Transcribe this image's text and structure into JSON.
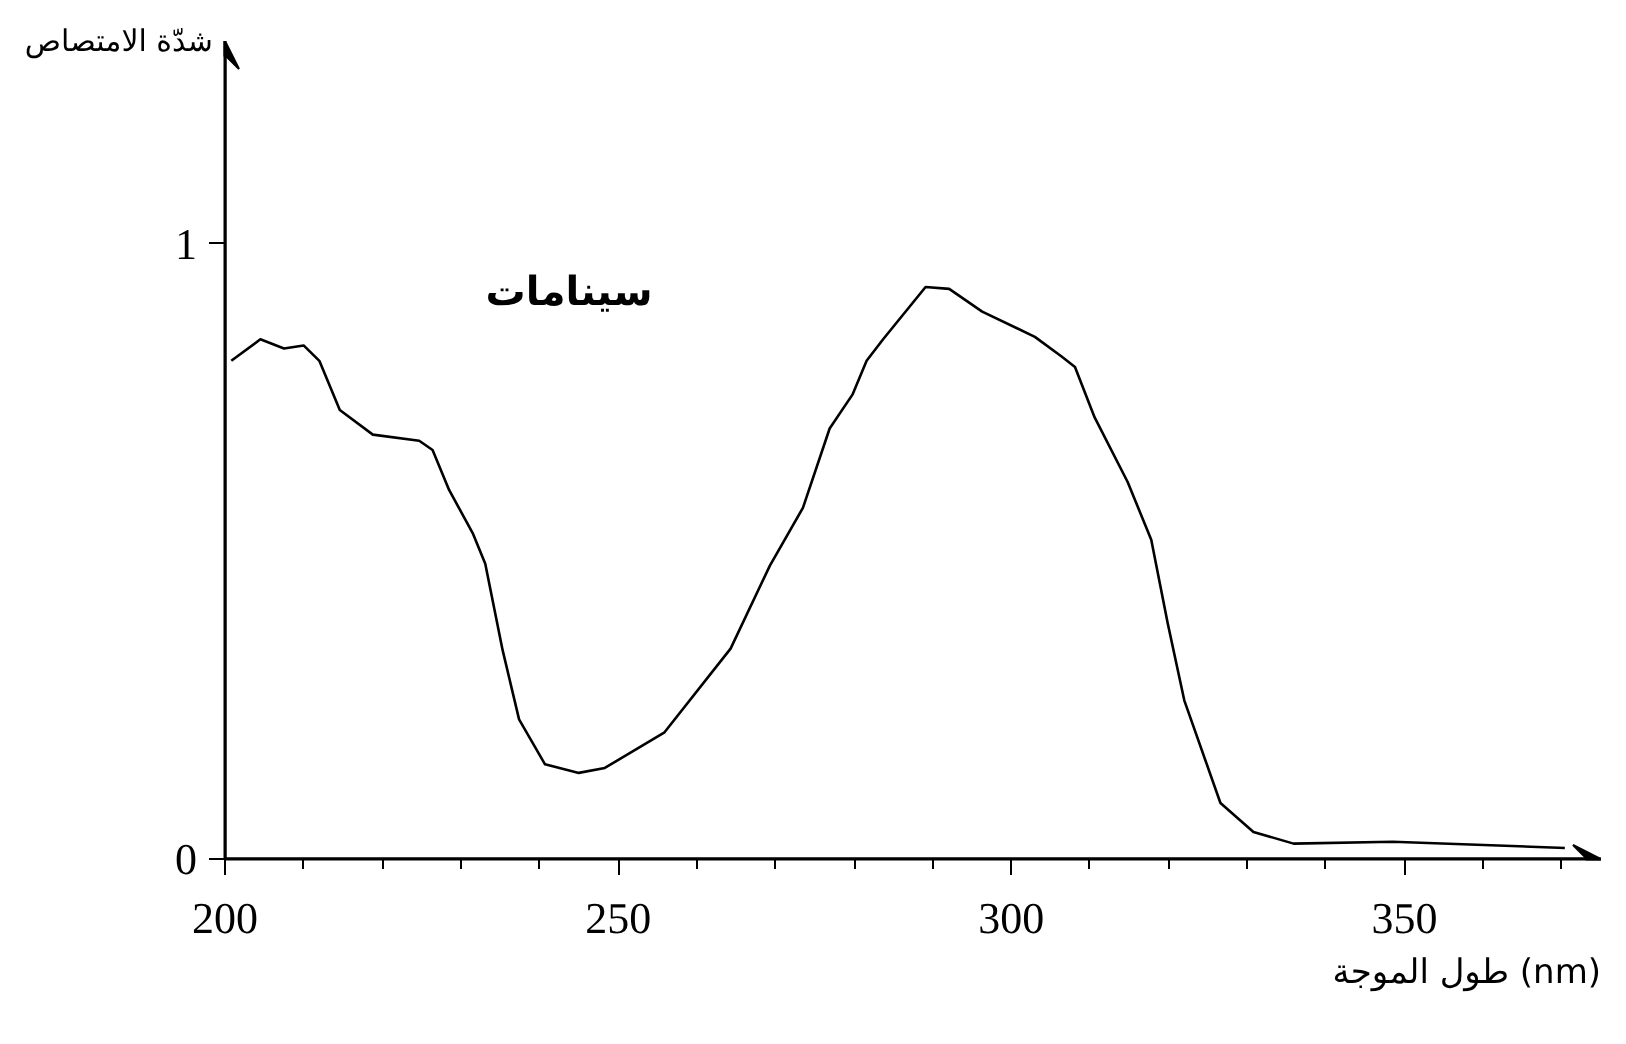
{
  "chart_data": {
    "type": "line",
    "xlabel": "طول الموجة (nm)",
    "ylabel": "شدّة الامتصاص",
    "xlim": [
      200,
      375
    ],
    "ylim": [
      0,
      1.33
    ],
    "xticks": [
      200,
      250,
      300,
      350
    ],
    "yticks": [
      0,
      1
    ],
    "grid": false,
    "marker": "none",
    "line_style": "solid",
    "series": [
      {
        "name": "سينامات",
        "color": "#000000",
        "x": [
          200.8,
          204.5,
          207.5,
          210,
          212,
          214.6,
          218.8,
          224.7,
          226.4,
          228.5,
          231.5,
          233.1,
          235.3,
          237.4,
          240.7,
          245,
          248.3,
          255.9,
          264.3,
          269.3,
          273.5,
          276.9,
          279.8,
          281.6,
          283.7,
          289.1,
          292.1,
          296.3,
          303.0,
          306.4,
          308.1,
          310.6,
          314.8,
          317.8,
          319.9,
          322.0,
          326.6,
          330.8,
          335.9,
          348.5,
          370.4
        ],
        "values": [
          0.81,
          0.845,
          0.83,
          0.835,
          0.81,
          0.73,
          0.69,
          0.68,
          0.665,
          0.6,
          0.53,
          0.48,
          0.34,
          0.227,
          0.154,
          0.14,
          0.148,
          0.206,
          0.342,
          0.477,
          0.571,
          0.7,
          0.755,
          0.81,
          0.845,
          0.93,
          0.927,
          0.89,
          0.849,
          0.817,
          0.8,
          0.718,
          0.613,
          0.519,
          0.383,
          0.258,
          0.091,
          0.044,
          0.025,
          0.028,
          0.018
        ]
      }
    ]
  }
}
